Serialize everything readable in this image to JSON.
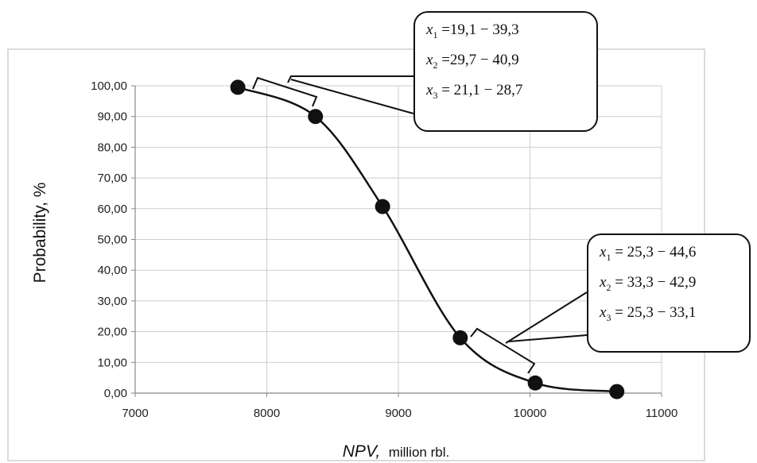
{
  "chart_data": {
    "type": "line",
    "xlabel_italic": "NPV,",
    "xlabel_unit": "million rbl.",
    "ylabel": "Probability, %",
    "xlim": [
      7000,
      11000
    ],
    "ylim": [
      0,
      100
    ],
    "x_ticks": [
      "7000",
      "8000",
      "9000",
      "10000",
      "11000"
    ],
    "y_ticks": [
      "0,00",
      "10,00",
      "20,00",
      "30,00",
      "40,00",
      "50,00",
      "60,00",
      "70,00",
      "80,00",
      "90,00",
      "100,00"
    ],
    "grid": true,
    "series": [
      {
        "x": [
          7780,
          8370,
          8880,
          9470,
          10040,
          10660
        ],
        "y": [
          99.5,
          90.0,
          60.7,
          18.0,
          3.3,
          0.5
        ]
      }
    ],
    "callouts": [
      {
        "lines": [
          {
            "var": "x",
            "sub": "1",
            "text": "=19,1 − 39,3"
          },
          {
            "var": "x",
            "sub": "2",
            "text": "=29,7 − 40,9"
          },
          {
            "var": "x",
            "sub": "3",
            "text": "= 21,1 − 28,7"
          }
        ]
      },
      {
        "lines": [
          {
            "var": "x",
            "sub": "1",
            "text": "= 25,3 − 44,6"
          },
          {
            "var": "x",
            "sub": "2",
            "text": "= 33,3 − 42,9"
          },
          {
            "var": "x",
            "sub": "3",
            "text": "= 25,3 − 33,1"
          }
        ]
      }
    ]
  }
}
